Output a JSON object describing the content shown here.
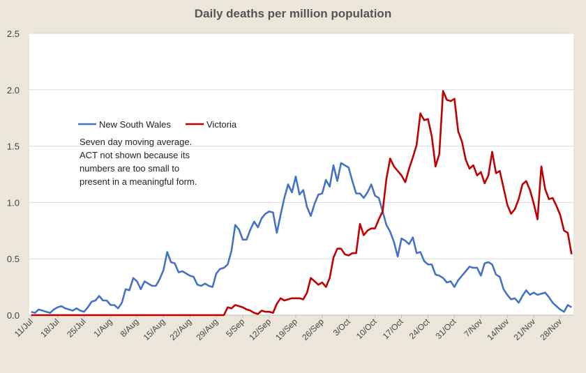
{
  "chart_data": {
    "type": "line",
    "title": "Daily deaths per million population",
    "xlabel": "",
    "ylabel": "",
    "ylim": [
      0,
      2.5
    ],
    "yticks": [
      "0.0",
      "0.5",
      "1.0",
      "1.5",
      "2.0",
      "2.5"
    ],
    "xticks": [
      "11/Jul",
      "18/Jul",
      "25/Jul",
      "1/Aug",
      "8/Aug",
      "15/Aug",
      "22/Aug",
      "29/Aug",
      "5/Sep",
      "12/Sep",
      "19/Sep",
      "26/Sep",
      "3/Oct",
      "10/Oct",
      "17/Oct",
      "24/Oct",
      "31/Oct",
      "7/Nov",
      "14/Nov",
      "21/Nov",
      "28/Nov"
    ],
    "x_start": "11/Jul",
    "grid": "horizontal",
    "legend_position": "left-middle",
    "annotation": [
      "Seven day moving average.",
      "ACT not shown because its",
      "numbers are too small to",
      "present in a meaningful form."
    ],
    "colors": {
      "background": "#ece5da",
      "plot_area": "#ffffff",
      "nsw": "#4472c4",
      "vic": "#c00000",
      "grid": "#d9d9d9"
    },
    "series": [
      {
        "name": "New South Wales",
        "values": [
          0.03,
          0.02,
          0.05,
          0.04,
          0.03,
          0.02,
          0.05,
          0.07,
          0.08,
          0.06,
          0.05,
          0.04,
          0.06,
          0.04,
          0.03,
          0.07,
          0.12,
          0.13,
          0.17,
          0.13,
          0.13,
          0.09,
          0.09,
          0.06,
          0.11,
          0.23,
          0.22,
          0.33,
          0.3,
          0.23,
          0.3,
          0.28,
          0.26,
          0.26,
          0.32,
          0.4,
          0.56,
          0.47,
          0.46,
          0.38,
          0.39,
          0.37,
          0.35,
          0.34,
          0.27,
          0.26,
          0.28,
          0.26,
          0.25,
          0.37,
          0.41,
          0.42,
          0.45,
          0.57,
          0.8,
          0.76,
          0.67,
          0.67,
          0.76,
          0.83,
          0.78,
          0.86,
          0.9,
          0.92,
          0.91,
          0.73,
          0.89,
          1.04,
          1.16,
          1.09,
          1.23,
          1.07,
          1.11,
          0.96,
          0.88,
          0.99,
          1.07,
          1.08,
          1.2,
          1.14,
          1.33,
          1.19,
          1.35,
          1.33,
          1.31,
          1.19,
          1.08,
          1.08,
          1.04,
          1.09,
          1.16,
          1.06,
          1.04,
          0.92,
          0.8,
          0.74,
          0.65,
          0.52,
          0.68,
          0.66,
          0.63,
          0.69,
          0.55,
          0.56,
          0.48,
          0.45,
          0.45,
          0.36,
          0.35,
          0.33,
          0.29,
          0.3,
          0.25,
          0.31,
          0.35,
          0.39,
          0.43,
          0.42,
          0.42,
          0.35,
          0.46,
          0.47,
          0.45,
          0.36,
          0.34,
          0.23,
          0.18,
          0.14,
          0.15,
          0.11,
          0.17,
          0.22,
          0.18,
          0.2,
          0.18,
          0.19,
          0.2,
          0.16,
          0.11,
          0.08,
          0.05,
          0.03,
          0.09,
          0.07
        ]
      },
      {
        "name": "Victoria",
        "values": [
          0,
          0,
          0,
          0,
          0,
          0,
          0,
          0,
          0,
          0,
          0,
          0,
          0,
          0,
          0,
          0,
          0,
          0,
          0,
          0,
          0,
          0,
          0,
          0,
          0,
          0,
          0,
          0,
          0,
          0,
          0,
          0,
          0,
          0,
          0,
          0,
          0,
          0,
          0,
          0,
          0,
          0,
          0,
          0,
          0,
          0,
          0,
          0,
          0,
          0,
          0,
          0,
          0.07,
          0.06,
          0.09,
          0.08,
          0.07,
          0.05,
          0.04,
          0.02,
          0.01,
          0.04,
          0.03,
          0.03,
          0.02,
          0.1,
          0.15,
          0.13,
          0.14,
          0.15,
          0.15,
          0.15,
          0.14,
          0.2,
          0.33,
          0.3,
          0.27,
          0.29,
          0.25,
          0.33,
          0.51,
          0.59,
          0.59,
          0.54,
          0.53,
          0.55,
          0.55,
          0.81,
          0.71,
          0.75,
          0.77,
          0.77,
          0.85,
          0.92,
          1.21,
          1.39,
          1.32,
          1.28,
          1.24,
          1.18,
          1.3,
          1.4,
          1.51,
          1.79,
          1.73,
          1.74,
          1.59,
          1.32,
          1.43,
          1.99,
          1.91,
          1.9,
          1.92,
          1.63,
          1.54,
          1.38,
          1.3,
          1.33,
          1.24,
          1.27,
          1.17,
          1.24,
          1.45,
          1.26,
          1.28,
          1.13,
          0.98,
          0.9,
          0.94,
          1.03,
          1.16,
          1.19,
          1.11,
          0.99,
          0.85,
          1.32,
          1.12,
          1.03,
          1.04,
          0.97,
          0.89,
          0.75,
          0.73,
          0.54
        ]
      }
    ]
  }
}
